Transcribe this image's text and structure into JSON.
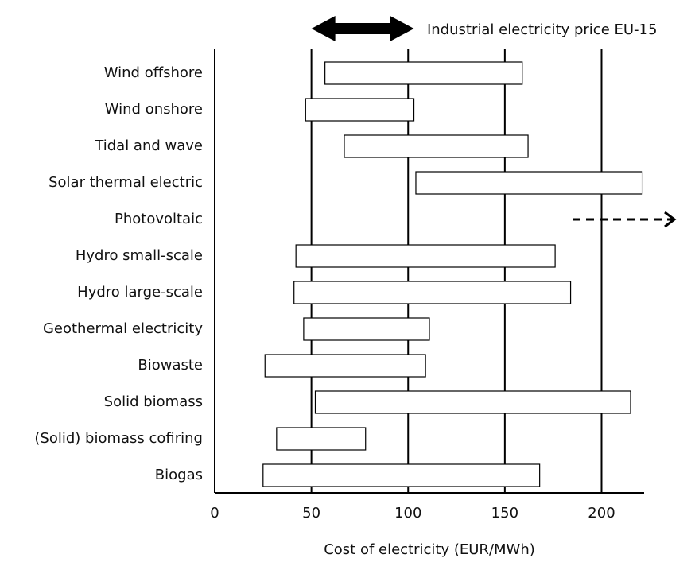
{
  "chart_data": {
    "type": "range_bar",
    "x_label": "Cost of electricity (EUR/MWh)",
    "price_label": "Industrial electricity price EU-15",
    "price_range": [
      50,
      103
    ],
    "categories": [
      "Wind offshore",
      "Wind onshore",
      "Tidal and wave",
      "Solar thermal electric",
      "Photovoltaic",
      "Hydro small-scale",
      "Hydro large-scale",
      "Geothermal electricity",
      "Biowaste",
      "Solid biomass",
      "(Solid) biomass cofiring",
      "Biogas"
    ],
    "low": [
      57,
      47,
      67,
      104,
      185,
      42,
      41,
      46,
      26,
      52,
      32,
      25
    ],
    "high": [
      159,
      103,
      162,
      221,
      null,
      176,
      184,
      111,
      109,
      215,
      78,
      168
    ],
    "color": "#ffffff",
    "xlim": [
      0,
      222
    ],
    "xticks": [
      0,
      50,
      100,
      150,
      200
    ],
    "grid": true
  }
}
